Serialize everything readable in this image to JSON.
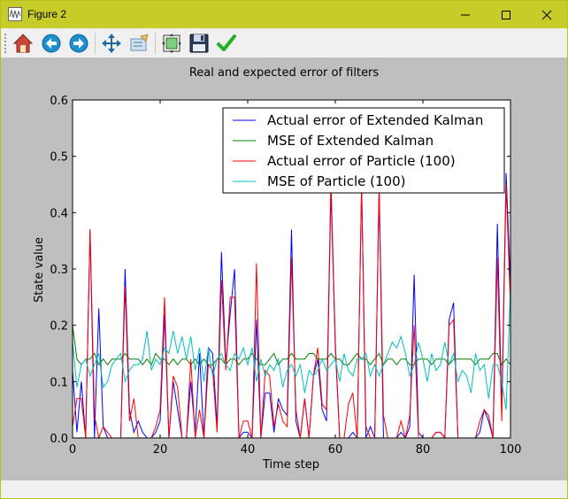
{
  "window": {
    "title": "Figure 2",
    "accent": "#c7cc29"
  },
  "toolbar": {
    "buttons": [
      {
        "name": "home-button",
        "icon": "home-icon"
      },
      {
        "name": "back-button",
        "icon": "back-arrow-icon"
      },
      {
        "name": "forward-button",
        "icon": "forward-arrow-icon"
      },
      {
        "name": "pan-button",
        "icon": "move-icon"
      },
      {
        "name": "zoom-button",
        "icon": "zoom-rect-icon"
      },
      {
        "name": "subplots-button",
        "icon": "subplots-icon"
      },
      {
        "name": "save-button",
        "icon": "floppy-disk-icon"
      },
      {
        "name": "edit-axis-button",
        "icon": "checkmark-icon"
      }
    ]
  },
  "chart_data": {
    "type": "line",
    "title": "Real and expected error of filters",
    "xlabel": "Time step",
    "ylabel": "State value",
    "xlim": [
      0,
      100
    ],
    "ylim": [
      0,
      0.6
    ],
    "xticks": [
      "0",
      "20",
      "40",
      "60",
      "80",
      "100"
    ],
    "yticks": [
      "0.0",
      "0.1",
      "0.2",
      "0.3",
      "0.4",
      "0.5",
      "0.6"
    ],
    "grid": false,
    "legend_position": "top-right",
    "series": [
      {
        "name": "Actual error of Extended Kalman",
        "color": "#0000ff",
        "values": [
          0.12,
          0.01,
          0.1,
          0.0,
          0.37,
          0.0,
          0.23,
          0.02,
          0.0,
          0.0,
          0.0,
          0.0,
          0.3,
          0.05,
          0.01,
          0.03,
          0.01,
          0.0,
          0.0,
          0.01,
          0.03,
          0.22,
          0.0,
          0.1,
          0.05,
          0.0,
          0.0,
          0.1,
          0.01,
          0.15,
          0.0,
          0.16,
          0.15,
          0.02,
          0.33,
          0.13,
          0.22,
          0.3,
          0.0,
          0.01,
          0.01,
          0.0,
          0.21,
          0.0,
          0.08,
          0.08,
          0.01,
          0.07,
          0.05,
          0.04,
          0.37,
          0.03,
          0.0,
          0.07,
          0.0,
          0.11,
          0.14,
          0.05,
          0.03,
          0.44,
          0.16,
          0.0,
          0.0,
          0.0,
          0.01,
          0.0,
          0.45,
          0.0,
          0.02,
          0.0,
          0.44,
          0.0,
          0.0,
          0.0,
          0.0,
          0.01,
          0.0,
          0.02,
          0.29,
          0.01,
          0.0,
          0.0,
          0.0,
          0.01,
          0.01,
          0.0,
          0.21,
          0.24,
          0.0,
          0.0,
          0.0,
          0.0,
          0.0,
          0.01,
          0.05,
          0.03,
          0.0,
          0.38,
          0.05,
          0.47,
          0.27
        ]
      },
      {
        "name": "MSE of Extended Kalman",
        "color": "#008000",
        "values": [
          0.2,
          0.14,
          0.13,
          0.14,
          0.14,
          0.15,
          0.13,
          0.14,
          0.13,
          0.14,
          0.14,
          0.14,
          0.15,
          0.14,
          0.14,
          0.14,
          0.13,
          0.14,
          0.13,
          0.15,
          0.14,
          0.14,
          0.13,
          0.14,
          0.13,
          0.14,
          0.14,
          0.13,
          0.14,
          0.13,
          0.14,
          0.13,
          0.13,
          0.14,
          0.14,
          0.13,
          0.14,
          0.14,
          0.13,
          0.14,
          0.14,
          0.15,
          0.14,
          0.13,
          0.13,
          0.14,
          0.15,
          0.13,
          0.14,
          0.14,
          0.15,
          0.14,
          0.14,
          0.14,
          0.15,
          0.15,
          0.14,
          0.14,
          0.14,
          0.15,
          0.14,
          0.14,
          0.13,
          0.13,
          0.14,
          0.15,
          0.14,
          0.14,
          0.13,
          0.14,
          0.15,
          0.13,
          0.14,
          0.14,
          0.13,
          0.14,
          0.14,
          0.13,
          0.13,
          0.14,
          0.14,
          0.14,
          0.13,
          0.14,
          0.14,
          0.14,
          0.13,
          0.14,
          0.14,
          0.14,
          0.14,
          0.14,
          0.13,
          0.14,
          0.14,
          0.14,
          0.15,
          0.15,
          0.13,
          0.14,
          0.13
        ]
      },
      {
        "name": "Actual error of Particle (100)",
        "color": "#ff0000",
        "values": [
          0.02,
          0.07,
          0.07,
          0.0,
          0.37,
          0.04,
          0.0,
          0.02,
          0.01,
          0.0,
          0.0,
          0.0,
          0.27,
          0.03,
          0.07,
          0.0,
          0.0,
          0.0,
          0.0,
          0.02,
          0.05,
          0.25,
          0.0,
          0.11,
          0.09,
          0.0,
          0.0,
          0.14,
          0.0,
          0.05,
          0.0,
          0.13,
          0.12,
          0.01,
          0.28,
          0.12,
          0.25,
          0.25,
          0.0,
          0.03,
          0.03,
          0.0,
          0.31,
          0.0,
          0.12,
          0.11,
          0.02,
          0.06,
          0.03,
          0.02,
          0.32,
          0.05,
          0.0,
          0.07,
          0.0,
          0.11,
          0.16,
          0.06,
          0.05,
          0.46,
          0.17,
          0.0,
          0.0,
          0.06,
          0.08,
          0.0,
          0.45,
          0.02,
          0.0,
          0.0,
          0.45,
          0.04,
          0.0,
          0.0,
          0.0,
          0.03,
          0.0,
          0.04,
          0.2,
          0.0,
          0.0,
          0.0,
          0.0,
          0.01,
          0.01,
          0.0,
          0.2,
          0.21,
          0.0,
          0.0,
          0.0,
          0.0,
          0.0,
          0.03,
          0.05,
          0.04,
          0.0,
          0.32,
          0.03,
          0.45,
          0.23
        ]
      },
      {
        "name": "MSE of Particle (100)",
        "color": "#00bfbf",
        "values": [
          0.17,
          0.09,
          0.13,
          0.14,
          0.11,
          0.13,
          0.15,
          0.09,
          0.1,
          0.13,
          0.14,
          0.15,
          0.1,
          0.12,
          0.13,
          0.13,
          0.14,
          0.19,
          0.12,
          0.14,
          0.13,
          0.16,
          0.15,
          0.19,
          0.15,
          0.18,
          0.14,
          0.18,
          0.12,
          0.16,
          0.1,
          0.16,
          0.11,
          0.14,
          0.15,
          0.13,
          0.12,
          0.15,
          0.14,
          0.16,
          0.13,
          0.16,
          0.1,
          0.14,
          0.11,
          0.13,
          0.12,
          0.14,
          0.09,
          0.12,
          0.13,
          0.11,
          0.13,
          0.08,
          0.12,
          0.11,
          0.12,
          0.14,
          0.12,
          0.13,
          0.14,
          0.1,
          0.15,
          0.12,
          0.11,
          0.14,
          0.14,
          0.15,
          0.11,
          0.13,
          0.11,
          0.13,
          0.15,
          0.17,
          0.16,
          0.18,
          0.15,
          0.11,
          0.13,
          0.17,
          0.14,
          0.1,
          0.15,
          0.12,
          0.13,
          0.17,
          0.13,
          0.15,
          0.1,
          0.12,
          0.11,
          0.08,
          0.15,
          0.12,
          0.13,
          0.07,
          0.13,
          0.13,
          0.1,
          0.05,
          0.27
        ]
      }
    ]
  }
}
